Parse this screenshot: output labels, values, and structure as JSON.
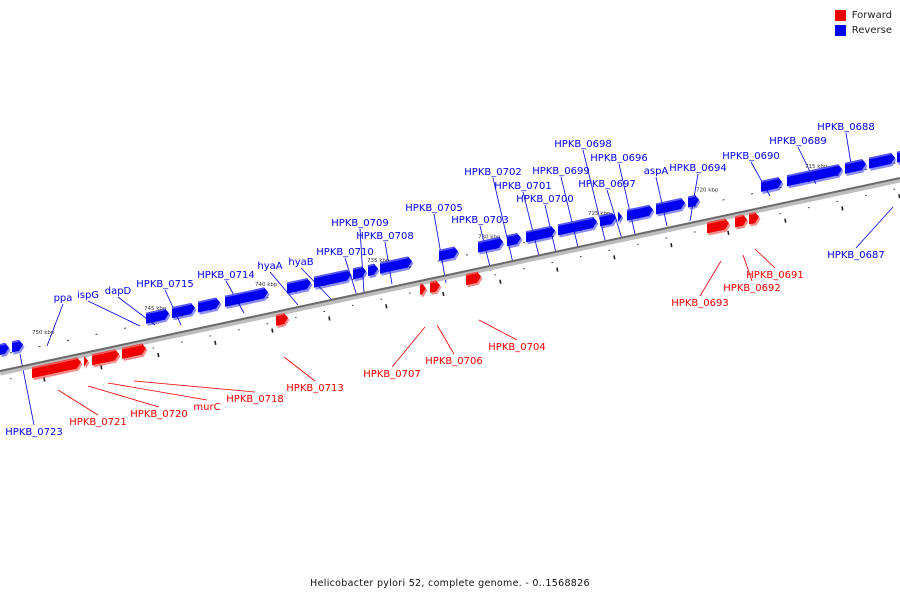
{
  "caption": "Helicobacter pylori 52, complete genome. - 0..1568826",
  "legend": [
    {
      "label": "Forward",
      "color": "#ee0000"
    },
    {
      "label": "Reverse",
      "color": "#0000ee"
    }
  ],
  "scale_labels": [
    "750 kbp",
    "745 kbp",
    "740 kbp",
    "735 kbp",
    "730 kbp",
    "725 kbp",
    "720 kbp",
    "715 kbp"
  ],
  "genes_forward": [
    "HPKB_0721",
    "HPKB_0720",
    "murC",
    "HPKB_0718",
    "HPKB_0713",
    "HPKB_0707",
    "HPKB_0706",
    "HPKB_0704",
    "HPKB_0693",
    "HPKB_0692",
    "HPKB_0691"
  ],
  "genes_reverse": [
    "HPKB_0723",
    "ppa",
    "ispG",
    "dapD",
    "HPKB_0715",
    "HPKB_0714",
    "hyaA",
    "hyaB",
    "HPKB_0710",
    "HPKB_0709",
    "HPKB_0708",
    "HPKB_0705",
    "HPKB_0703",
    "HPKB_0702",
    "HPKB_0701",
    "HPKB_0700",
    "HPKB_0699",
    "HPKB_0698",
    "HPKB_0697",
    "HPKB_0696",
    "aspA",
    "HPKB_0694",
    "HPKB_0690",
    "HPKB_0689",
    "HPKB_0688",
    "HPKB_0687"
  ]
}
